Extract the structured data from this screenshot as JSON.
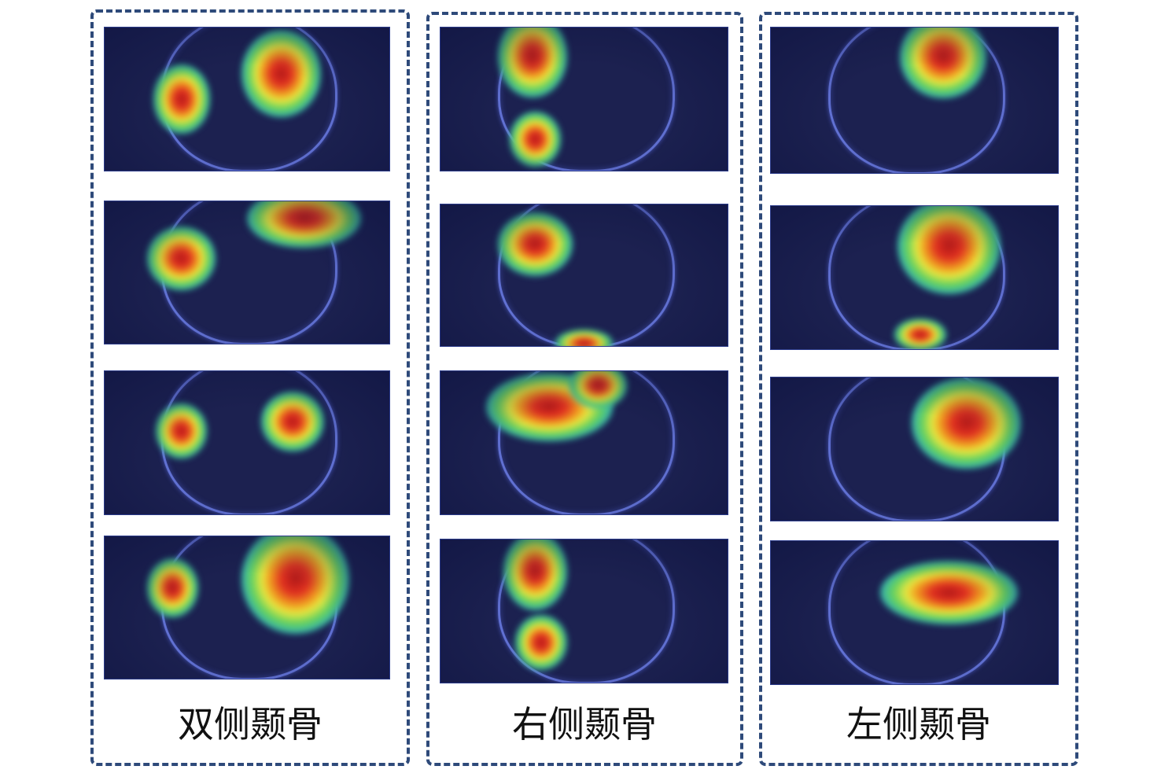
{
  "groups": [
    {
      "label": "双侧颞骨",
      "description_hint": "bilateral"
    },
    {
      "label": "右侧颞骨"
    },
    {
      "label": "左侧颞骨"
    }
  ]
}
